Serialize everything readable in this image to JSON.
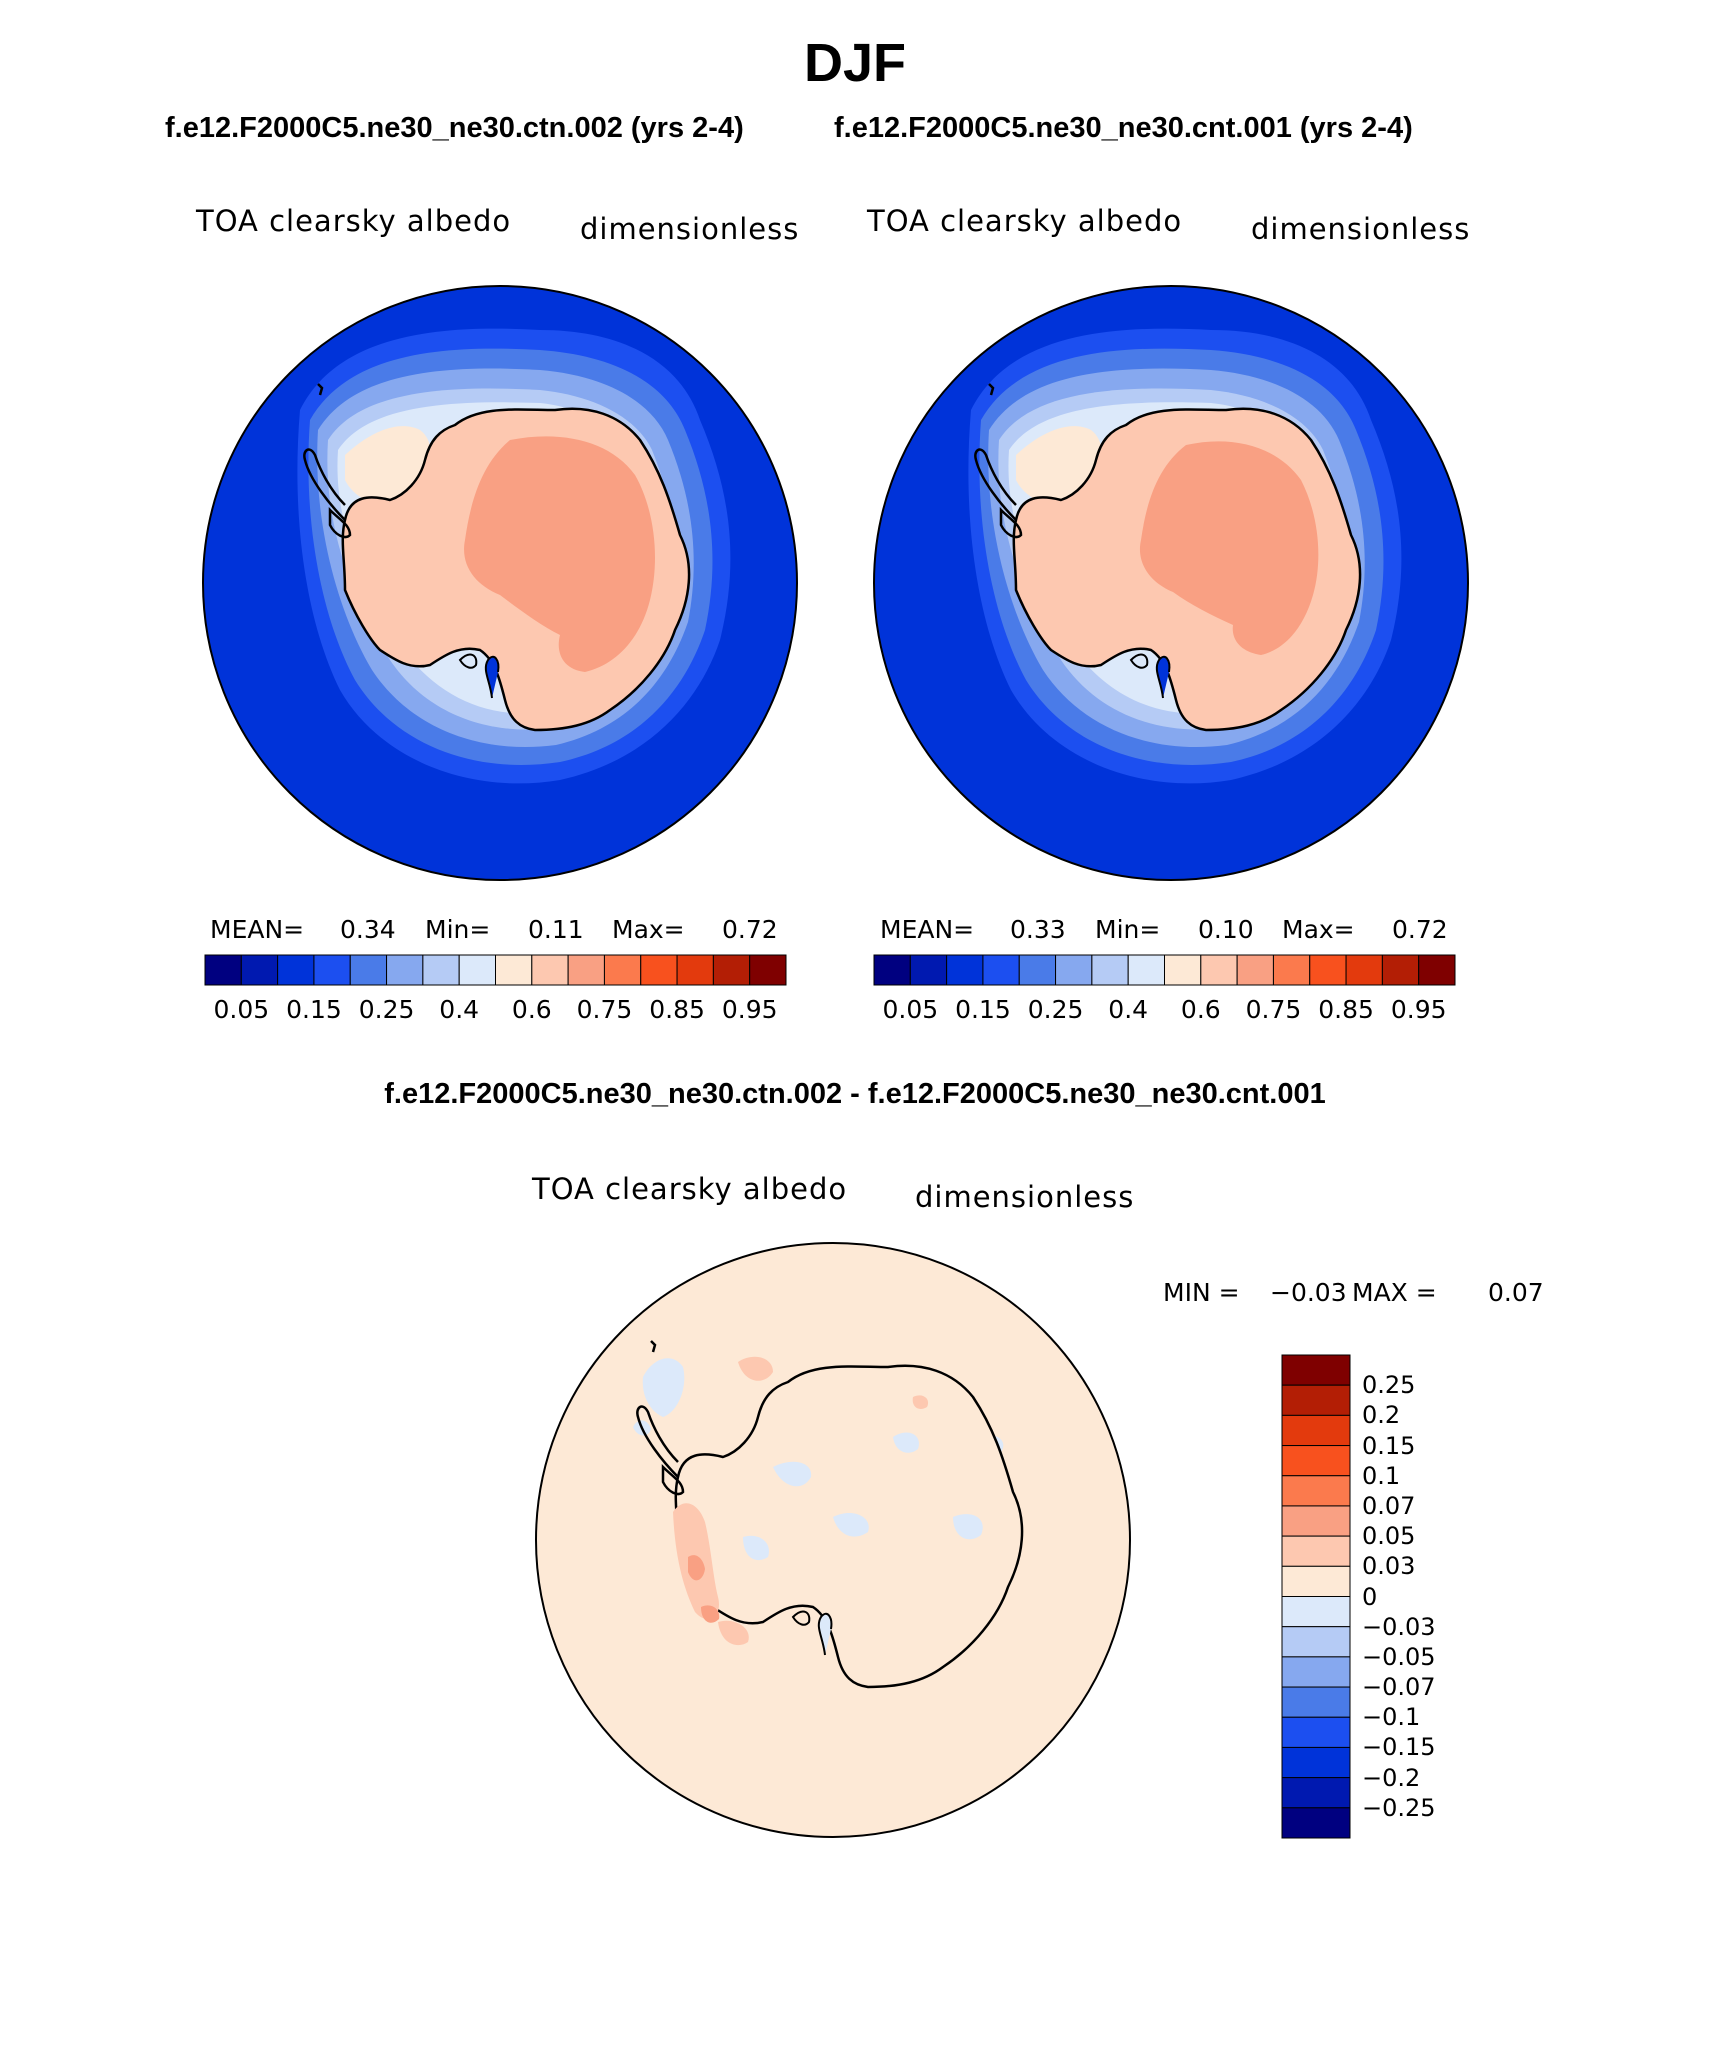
{
  "header": {
    "title": "DJF",
    "case_left": "f.e12.F2000C5.ne30_ne30.ctn.002 (yrs 2-4)",
    "case_right": "f.e12.F2000C5.ne30_ne30.cnt.001 (yrs 2-4)",
    "diff_title": "f.e12.F2000C5.ne30_ne30.ctn.002 - f.e12.F2000C5.ne30_ne30.cnt.001"
  },
  "panels": [
    {
      "variable": "TOA clearsky albedo",
      "units": "dimensionless",
      "mean_label": "MEAN=",
      "mean_value": "0.34",
      "min_label": "Min=",
      "min_value": "0.11",
      "max_label": "Max=",
      "max_value": "0.72"
    },
    {
      "variable": "TOA clearsky albedo",
      "units": "dimensionless",
      "mean_label": "MEAN=",
      "mean_value": "0.33",
      "min_label": "Min=",
      "min_value": "0.10",
      "max_label": "Max=",
      "max_value": "0.72"
    }
  ],
  "diff_panel": {
    "variable": "TOA clearsky albedo",
    "units": "dimensionless",
    "min_label": "MIN =",
    "min_value": "−0.03",
    "max_label": "MAX =",
    "max_value": "0.07"
  },
  "colorbar_horizontal": {
    "ticks": [
      "0.05",
      "0.15",
      "0.25",
      "0.4",
      "0.6",
      "0.75",
      "0.85",
      "0.95"
    ],
    "colors": [
      "#000080",
      "#0019b0",
      "#0033d9",
      "#1c4ff0",
      "#4a7be8",
      "#86a8ef",
      "#b5cbf5",
      "#dce9fa",
      "#fde9d6",
      "#fdc8b0",
      "#f9a083",
      "#fb7a4d",
      "#f8511e",
      "#e33a0d",
      "#b31e05",
      "#7f0000"
    ]
  },
  "colorbar_vertical": {
    "ticks": [
      "0.25",
      "0.2",
      "0.15",
      "0.1",
      "0.07",
      "0.05",
      "0.03",
      "0",
      "−0.03",
      "−0.05",
      "−0.07",
      "−0.1",
      "−0.15",
      "−0.2",
      "−0.25"
    ],
    "colors": [
      "#7f0000",
      "#b31e05",
      "#e33a0d",
      "#f8511e",
      "#fb7a4d",
      "#f9a083",
      "#fdc8b0",
      "#fde9d6",
      "#dce9fa",
      "#b5cbf5",
      "#86a8ef",
      "#4a7be8",
      "#1c4ff0",
      "#0033d9",
      "#0019b0",
      "#000080"
    ]
  }
}
